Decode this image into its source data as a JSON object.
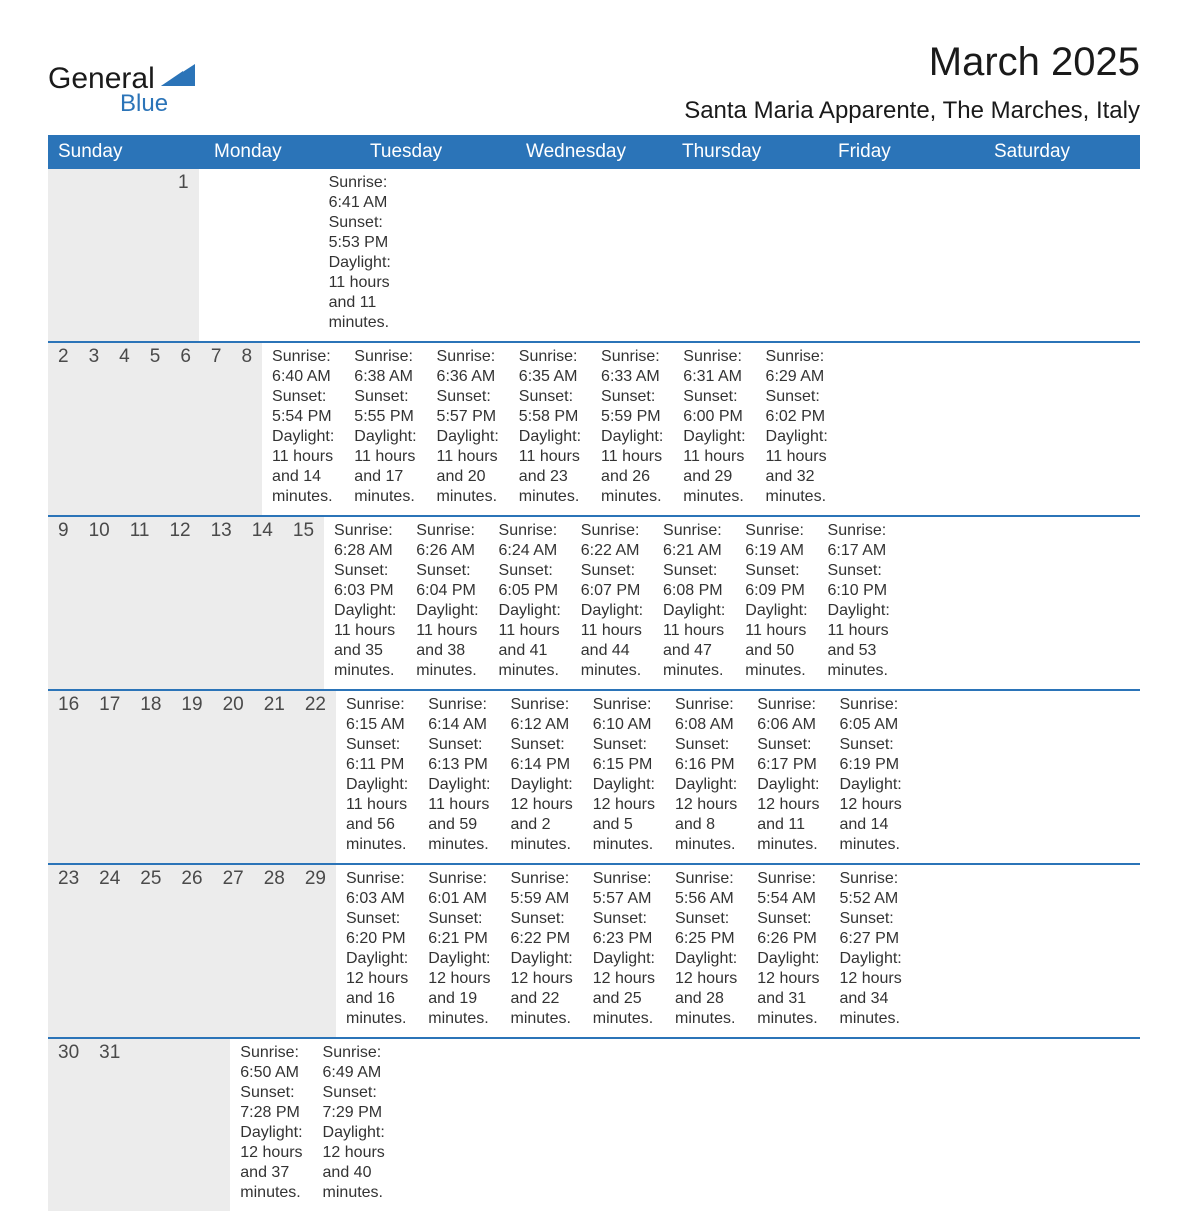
{
  "logo": {
    "text_top": "General",
    "text_bottom": "Blue",
    "top_color": "#1a1a1a",
    "bottom_color": "#2b74b8"
  },
  "title": "March 2025",
  "location": "Santa Maria Apparente, The Marches, Italy",
  "colors": {
    "header_bg": "#2b74b8",
    "header_text": "#ffffff",
    "daynum_band_bg": "#ececec",
    "daynum_text": "#4a4a4a",
    "detail_text": "#333333",
    "row_divider": "#2b74b8",
    "page_bg": "#ffffff"
  },
  "fonts": {
    "title_size": 40,
    "subtitle_size": 24,
    "weekday_size": 19,
    "daynum_size": 19,
    "detail_size": 16
  },
  "weekdays": [
    "Sunday",
    "Monday",
    "Tuesday",
    "Wednesday",
    "Thursday",
    "Friday",
    "Saturday"
  ],
  "weeks": [
    [
      null,
      null,
      null,
      null,
      null,
      null,
      {
        "n": "1",
        "sunrise": "Sunrise: 6:41 AM",
        "sunset": "Sunset: 5:53 PM",
        "dl1": "Daylight: 11 hours",
        "dl2": "and 11 minutes."
      }
    ],
    [
      {
        "n": "2",
        "sunrise": "Sunrise: 6:40 AM",
        "sunset": "Sunset: 5:54 PM",
        "dl1": "Daylight: 11 hours",
        "dl2": "and 14 minutes."
      },
      {
        "n": "3",
        "sunrise": "Sunrise: 6:38 AM",
        "sunset": "Sunset: 5:55 PM",
        "dl1": "Daylight: 11 hours",
        "dl2": "and 17 minutes."
      },
      {
        "n": "4",
        "sunrise": "Sunrise: 6:36 AM",
        "sunset": "Sunset: 5:57 PM",
        "dl1": "Daylight: 11 hours",
        "dl2": "and 20 minutes."
      },
      {
        "n": "5",
        "sunrise": "Sunrise: 6:35 AM",
        "sunset": "Sunset: 5:58 PM",
        "dl1": "Daylight: 11 hours",
        "dl2": "and 23 minutes."
      },
      {
        "n": "6",
        "sunrise": "Sunrise: 6:33 AM",
        "sunset": "Sunset: 5:59 PM",
        "dl1": "Daylight: 11 hours",
        "dl2": "and 26 minutes."
      },
      {
        "n": "7",
        "sunrise": "Sunrise: 6:31 AM",
        "sunset": "Sunset: 6:00 PM",
        "dl1": "Daylight: 11 hours",
        "dl2": "and 29 minutes."
      },
      {
        "n": "8",
        "sunrise": "Sunrise: 6:29 AM",
        "sunset": "Sunset: 6:02 PM",
        "dl1": "Daylight: 11 hours",
        "dl2": "and 32 minutes."
      }
    ],
    [
      {
        "n": "9",
        "sunrise": "Sunrise: 6:28 AM",
        "sunset": "Sunset: 6:03 PM",
        "dl1": "Daylight: 11 hours",
        "dl2": "and 35 minutes."
      },
      {
        "n": "10",
        "sunrise": "Sunrise: 6:26 AM",
        "sunset": "Sunset: 6:04 PM",
        "dl1": "Daylight: 11 hours",
        "dl2": "and 38 minutes."
      },
      {
        "n": "11",
        "sunrise": "Sunrise: 6:24 AM",
        "sunset": "Sunset: 6:05 PM",
        "dl1": "Daylight: 11 hours",
        "dl2": "and 41 minutes."
      },
      {
        "n": "12",
        "sunrise": "Sunrise: 6:22 AM",
        "sunset": "Sunset: 6:07 PM",
        "dl1": "Daylight: 11 hours",
        "dl2": "and 44 minutes."
      },
      {
        "n": "13",
        "sunrise": "Sunrise: 6:21 AM",
        "sunset": "Sunset: 6:08 PM",
        "dl1": "Daylight: 11 hours",
        "dl2": "and 47 minutes."
      },
      {
        "n": "14",
        "sunrise": "Sunrise: 6:19 AM",
        "sunset": "Sunset: 6:09 PM",
        "dl1": "Daylight: 11 hours",
        "dl2": "and 50 minutes."
      },
      {
        "n": "15",
        "sunrise": "Sunrise: 6:17 AM",
        "sunset": "Sunset: 6:10 PM",
        "dl1": "Daylight: 11 hours",
        "dl2": "and 53 minutes."
      }
    ],
    [
      {
        "n": "16",
        "sunrise": "Sunrise: 6:15 AM",
        "sunset": "Sunset: 6:11 PM",
        "dl1": "Daylight: 11 hours",
        "dl2": "and 56 minutes."
      },
      {
        "n": "17",
        "sunrise": "Sunrise: 6:14 AM",
        "sunset": "Sunset: 6:13 PM",
        "dl1": "Daylight: 11 hours",
        "dl2": "and 59 minutes."
      },
      {
        "n": "18",
        "sunrise": "Sunrise: 6:12 AM",
        "sunset": "Sunset: 6:14 PM",
        "dl1": "Daylight: 12 hours",
        "dl2": "and 2 minutes."
      },
      {
        "n": "19",
        "sunrise": "Sunrise: 6:10 AM",
        "sunset": "Sunset: 6:15 PM",
        "dl1": "Daylight: 12 hours",
        "dl2": "and 5 minutes."
      },
      {
        "n": "20",
        "sunrise": "Sunrise: 6:08 AM",
        "sunset": "Sunset: 6:16 PM",
        "dl1": "Daylight: 12 hours",
        "dl2": "and 8 minutes."
      },
      {
        "n": "21",
        "sunrise": "Sunrise: 6:06 AM",
        "sunset": "Sunset: 6:17 PM",
        "dl1": "Daylight: 12 hours",
        "dl2": "and 11 minutes."
      },
      {
        "n": "22",
        "sunrise": "Sunrise: 6:05 AM",
        "sunset": "Sunset: 6:19 PM",
        "dl1": "Daylight: 12 hours",
        "dl2": "and 14 minutes."
      }
    ],
    [
      {
        "n": "23",
        "sunrise": "Sunrise: 6:03 AM",
        "sunset": "Sunset: 6:20 PM",
        "dl1": "Daylight: 12 hours",
        "dl2": "and 16 minutes."
      },
      {
        "n": "24",
        "sunrise": "Sunrise: 6:01 AM",
        "sunset": "Sunset: 6:21 PM",
        "dl1": "Daylight: 12 hours",
        "dl2": "and 19 minutes."
      },
      {
        "n": "25",
        "sunrise": "Sunrise: 5:59 AM",
        "sunset": "Sunset: 6:22 PM",
        "dl1": "Daylight: 12 hours",
        "dl2": "and 22 minutes."
      },
      {
        "n": "26",
        "sunrise": "Sunrise: 5:57 AM",
        "sunset": "Sunset: 6:23 PM",
        "dl1": "Daylight: 12 hours",
        "dl2": "and 25 minutes."
      },
      {
        "n": "27",
        "sunrise": "Sunrise: 5:56 AM",
        "sunset": "Sunset: 6:25 PM",
        "dl1": "Daylight: 12 hours",
        "dl2": "and 28 minutes."
      },
      {
        "n": "28",
        "sunrise": "Sunrise: 5:54 AM",
        "sunset": "Sunset: 6:26 PM",
        "dl1": "Daylight: 12 hours",
        "dl2": "and 31 minutes."
      },
      {
        "n": "29",
        "sunrise": "Sunrise: 5:52 AM",
        "sunset": "Sunset: 6:27 PM",
        "dl1": "Daylight: 12 hours",
        "dl2": "and 34 minutes."
      }
    ],
    [
      {
        "n": "30",
        "sunrise": "Sunrise: 6:50 AM",
        "sunset": "Sunset: 7:28 PM",
        "dl1": "Daylight: 12 hours",
        "dl2": "and 37 minutes."
      },
      {
        "n": "31",
        "sunrise": "Sunrise: 6:49 AM",
        "sunset": "Sunset: 7:29 PM",
        "dl1": "Daylight: 12 hours",
        "dl2": "and 40 minutes."
      },
      null,
      null,
      null,
      null,
      null
    ]
  ]
}
